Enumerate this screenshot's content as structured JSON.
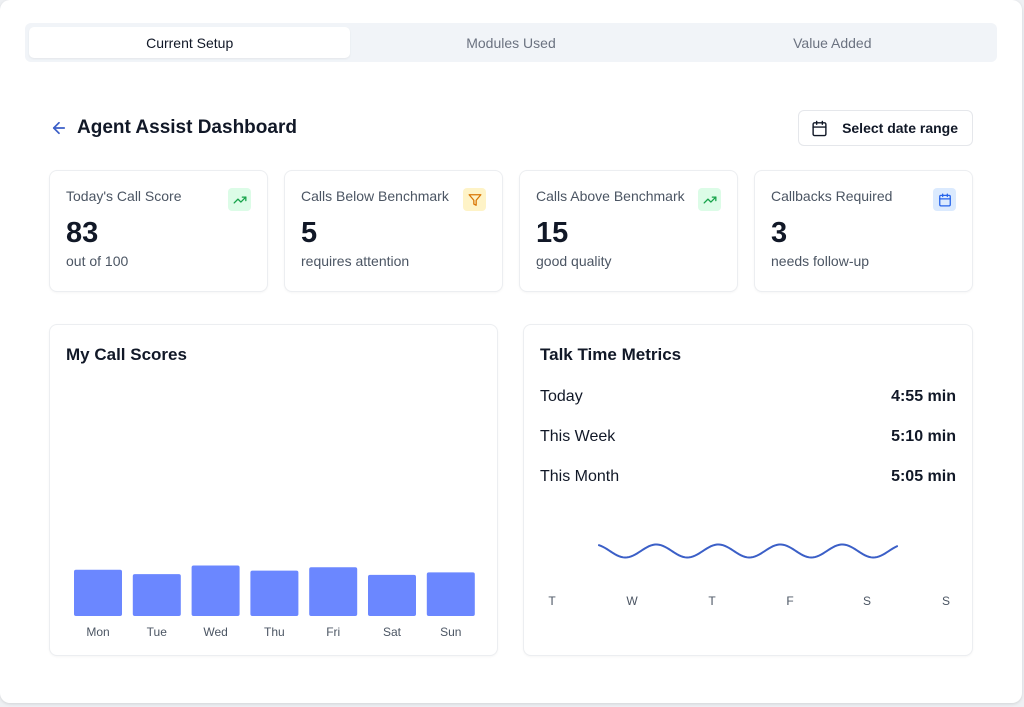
{
  "tabs": [
    {
      "label": "Current Setup",
      "active": true
    },
    {
      "label": "Modules Used",
      "active": false
    },
    {
      "label": "Value Added",
      "active": false
    }
  ],
  "header": {
    "title": "Agent Assist Dashboard",
    "date_button_label": "Select date range",
    "back_icon": "arrow-left-icon",
    "date_icon": "calendar-icon"
  },
  "stats": [
    {
      "label": "Today's Call Score",
      "value": "83",
      "sub": "out of 100",
      "icon": "trending-up-icon",
      "badge_color": "#dcfce7",
      "icon_color": "#16a34a"
    },
    {
      "label": "Calls Below Benchmark",
      "value": "5",
      "sub": "requires attention",
      "icon": "filter-icon",
      "badge_color": "#fef3c7",
      "icon_color": "#d97706"
    },
    {
      "label": "Calls Above Benchmark",
      "value": "15",
      "sub": "good quality",
      "icon": "trending-up-icon",
      "badge_color": "#dcfce7",
      "icon_color": "#16a34a"
    },
    {
      "label": "Callbacks Required",
      "value": "3",
      "sub": "needs follow-up",
      "icon": "calendar-icon",
      "badge_color": "#dbeafe",
      "icon_color": "#2563eb"
    }
  ],
  "call_scores": {
    "title": "My Call Scores",
    "chart_data": {
      "type": "bar",
      "categories": [
        "Mon",
        "Tue",
        "Wed",
        "Thu",
        "Fri",
        "Sat",
        "Sun"
      ],
      "values": [
        54,
        49,
        59,
        53,
        57,
        48,
        51
      ],
      "ylim": [
        0,
        270
      ],
      "color": "#6b87ff",
      "grid": false
    }
  },
  "talk_time": {
    "title": "Talk Time Metrics",
    "rows": [
      {
        "label": "Today",
        "value": "4:55 min"
      },
      {
        "label": "This Week",
        "value": "5:10 min"
      },
      {
        "label": "This Month",
        "value": "5:05 min"
      }
    ],
    "chart_data": {
      "type": "line",
      "x_labels": [
        "T",
        "W",
        "T",
        "F",
        "S",
        "S"
      ],
      "line_color": "#3b5fc7"
    }
  },
  "colors": {
    "accent": "#3b5fc7",
    "bar": "#6b87ff"
  }
}
